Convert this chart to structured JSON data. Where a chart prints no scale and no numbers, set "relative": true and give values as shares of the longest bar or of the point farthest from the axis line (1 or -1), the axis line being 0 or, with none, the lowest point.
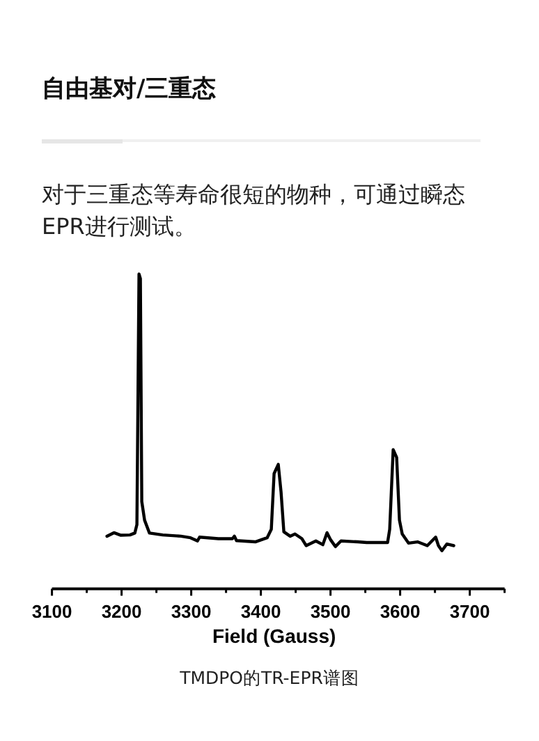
{
  "chart_data": {
    "type": "line",
    "title": "自由基对/三重态",
    "subtitle": "对于三重态等寿命很短的物种，可通过瞬态EPR进行测试。",
    "xlabel": "Field (Gauss)",
    "annotations": [
      "TMDPO的TR-EPR谱图"
    ],
    "relative": true,
    "xlim": [
      3100,
      3750
    ],
    "xticks": [
      3100,
      {
        "value": 3150,
        "label": null
      },
      3200,
      {
        "value": 3250,
        "label": null
      },
      3300,
      {
        "value": 3350,
        "label": null
      },
      3400,
      {
        "value": 3450,
        "label": null
      },
      3500,
      {
        "value": 3550,
        "label": null
      },
      3600,
      {
        "value": 3650,
        "label": null
      },
      3700,
      {
        "value": 3750,
        "label": null
      }
    ],
    "x": [
      3179,
      3189,
      3199,
      3212,
      3219,
      3222,
      3225,
      3227,
      3229,
      3233,
      3240,
      3259,
      3285,
      3299,
      3309,
      3312,
      3339,
      3359,
      3362,
      3365,
      3392,
      3409,
      3415,
      3419,
      3425,
      3429,
      3433,
      3442,
      3449,
      3459,
      3465,
      3479,
      3489,
      3495,
      3500,
      3507,
      3515,
      3539,
      3552,
      3565,
      3582,
      3585,
      3590,
      3595,
      3599,
      3603,
      3612,
      3625,
      3639,
      3651,
      3655,
      3660,
      3667,
      3677
    ],
    "color": "#000000",
    "values": [
      0.167,
      0.178,
      0.17,
      0.171,
      0.177,
      0.204,
      1.0,
      0.985,
      0.277,
      0.218,
      0.177,
      0.171,
      0.167,
      0.162,
      0.152,
      0.164,
      0.159,
      0.159,
      0.167,
      0.153,
      0.149,
      0.162,
      0.189,
      0.366,
      0.395,
      0.307,
      0.181,
      0.167,
      0.174,
      0.159,
      0.137,
      0.152,
      0.14,
      0.178,
      0.156,
      0.134,
      0.152,
      0.149,
      0.147,
      0.147,
      0.147,
      0.189,
      0.442,
      0.417,
      0.218,
      0.174,
      0.145,
      0.149,
      0.137,
      0.164,
      0.137,
      0.121,
      0.142,
      0.137
    ]
  }
}
